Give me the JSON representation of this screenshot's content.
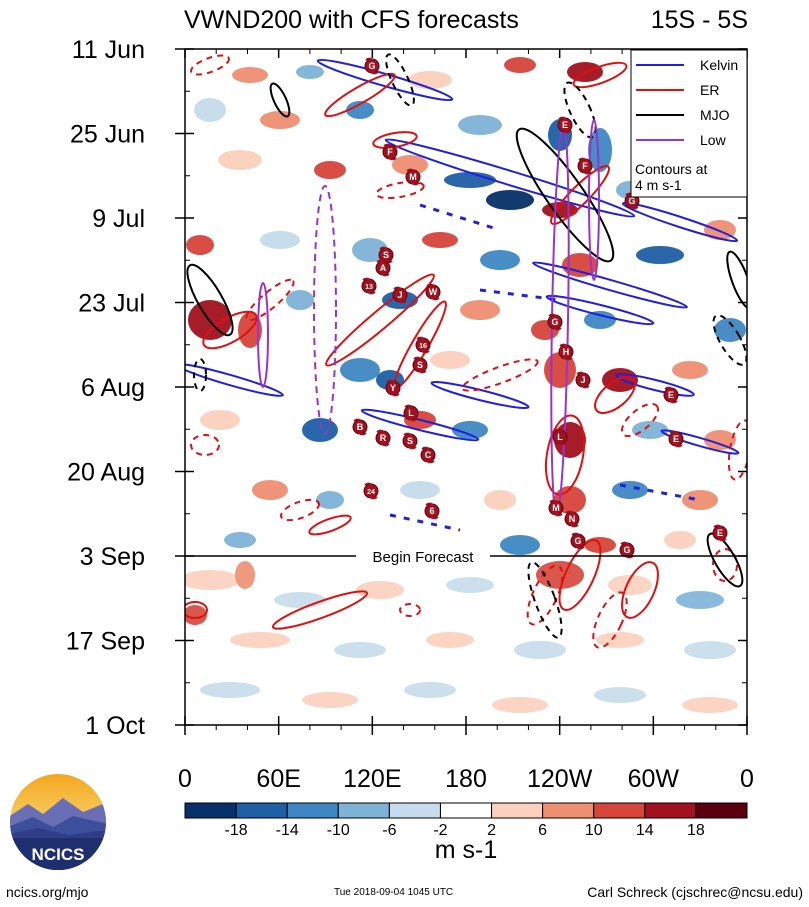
{
  "chart_data": {
    "type": "heatmap",
    "title_left": "VWND200 with CFS forecasts",
    "title_right": "15S - 5S",
    "y_ticks": [
      "11 Jun",
      "25 Jun",
      "9 Jul",
      "23 Jul",
      "6 Aug",
      "20 Aug",
      "3 Sep",
      "17 Sep",
      "1 Oct"
    ],
    "x_ticks": [
      "0",
      "60E",
      "120E",
      "180",
      "120W",
      "60W",
      "0"
    ],
    "forecast_label": "Begin Forecast",
    "legend": {
      "entries": [
        {
          "name": "Kelvin",
          "color": "#2020e0"
        },
        {
          "name": "ER",
          "color": "#e01010"
        },
        {
          "name": "MJO",
          "color": "#000000"
        },
        {
          "name": "Low",
          "color": "#9933cc"
        }
      ],
      "note_line1": "Contours at",
      "note_line2": "4 m s-1"
    },
    "colorbar": {
      "labels": [
        "-18",
        "-14",
        "-10",
        "-6",
        "-2",
        "2",
        "6",
        "10",
        "14",
        "18"
      ],
      "colors": [
        "#08306b",
        "#1f5fa6",
        "#3f87c4",
        "#7eb3d8",
        "#c6dcec",
        "#ffffff",
        "#fbd0bd",
        "#ef8f72",
        "#d6453a",
        "#a3101e",
        "#5a0010"
      ],
      "units": "m s-1"
    },
    "storm_labels": [
      "G",
      "F",
      "M",
      "S",
      "A",
      "13",
      "J",
      "W",
      "16",
      "S",
      "Y",
      "L",
      "B",
      "R",
      "S",
      "C",
      "24",
      "6",
      "E",
      "F",
      "G",
      "G",
      "H",
      "J",
      "L",
      "M",
      "N",
      "G",
      "G",
      "E",
      "E",
      "E"
    ]
  },
  "footer": {
    "left": "ncics.org/mjo",
    "center": "Tue 2018-09-04 1045 UTC",
    "right": "Carl Schreck (cjschrec@ncsu.edu)"
  },
  "logo": {
    "text": "NCICS"
  }
}
